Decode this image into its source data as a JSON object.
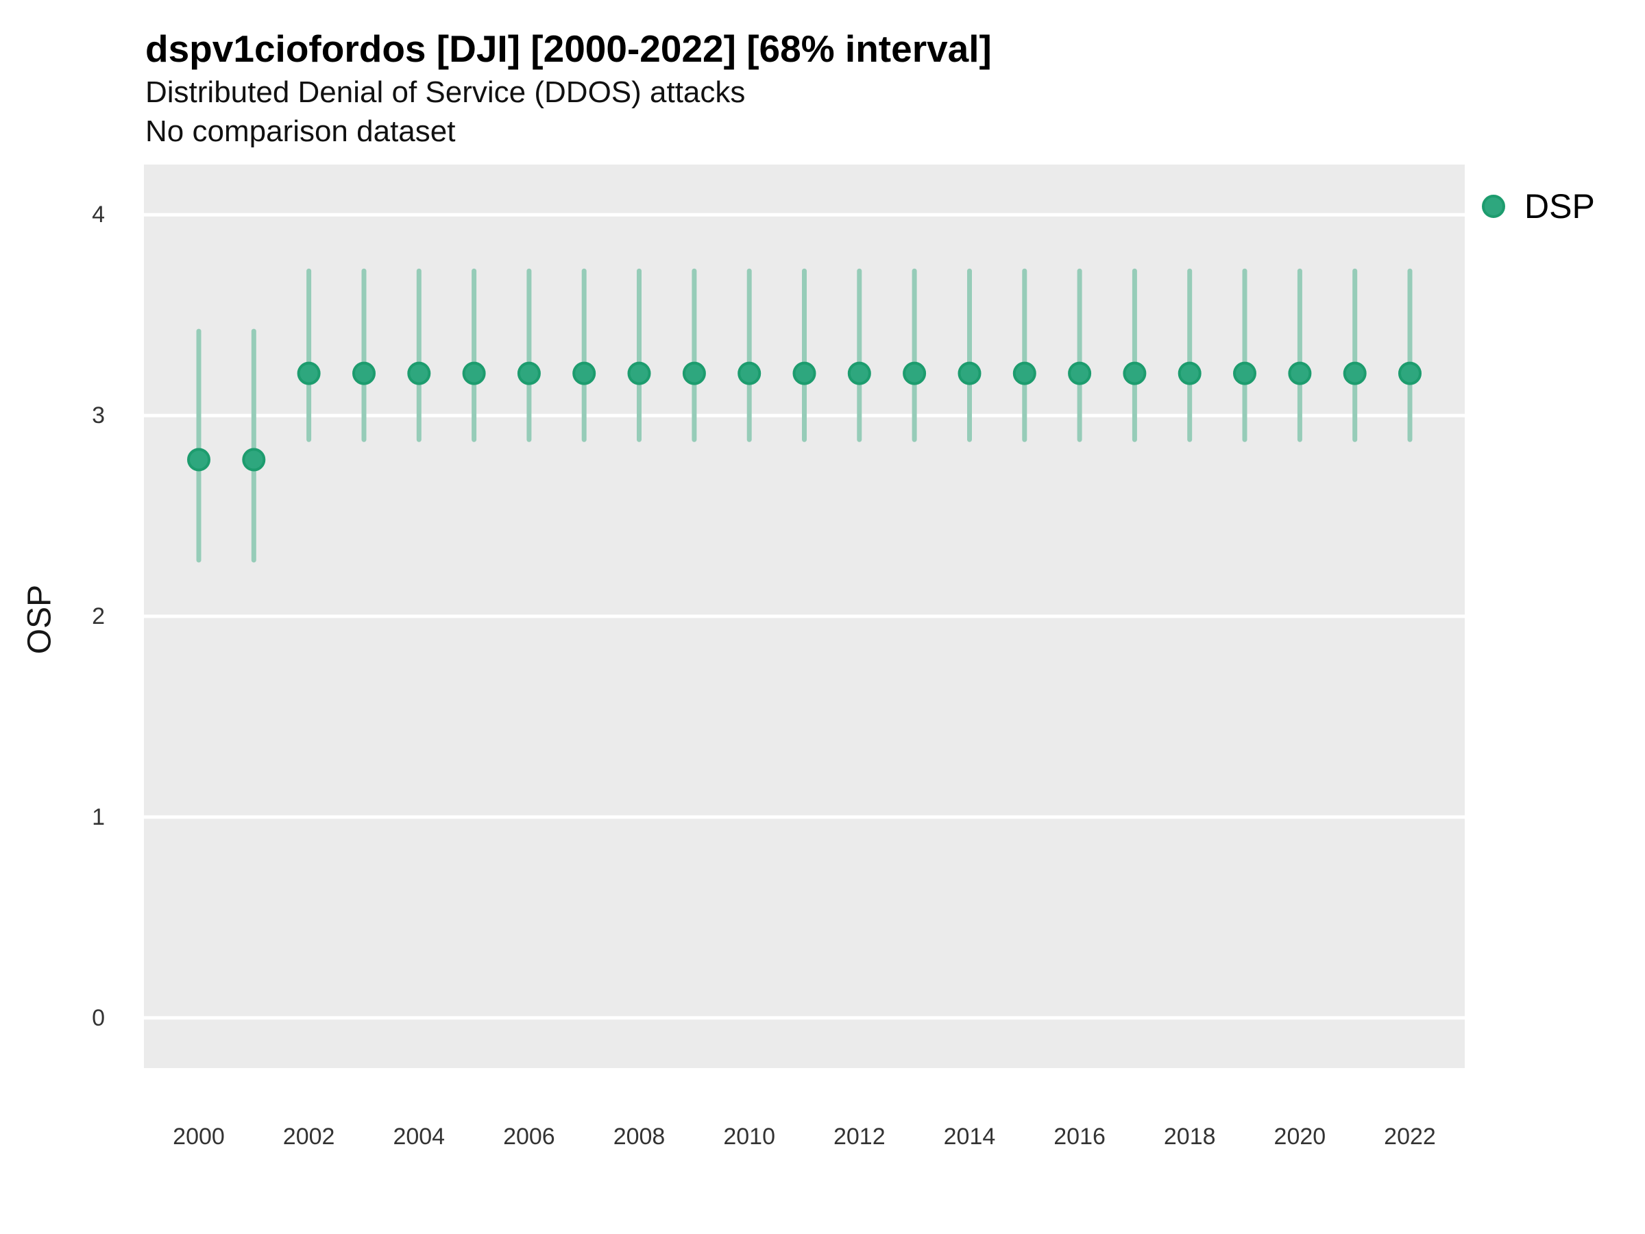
{
  "header": {
    "title": "dspv1ciofordos [DJI] [2000-2022] [68% interval]",
    "subtitle": "Distributed Denial of Service (DDOS) attacks",
    "note": "No comparison dataset"
  },
  "axis": {
    "y_label": "OSP"
  },
  "legend": {
    "items": [
      {
        "label": "DSP",
        "color": "#2ea77e",
        "border": "#1d9c6e"
      }
    ]
  },
  "colors": {
    "panel_bg": "#ebebeb",
    "gridline": "#ffffff",
    "point_fill": "#2ea77e",
    "point_stroke": "#1d9c6e",
    "interval": "#96ccb8",
    "tick_text": "#333333"
  },
  "chart_data": {
    "type": "scatter",
    "subtype": "pointrange (points with 68% error bars)",
    "title": "dspv1ciofordos [DJI] [2000-2022] [68% interval]",
    "subtitle": "Distributed Denial of Service (DDOS) attacks",
    "note": "No comparison dataset",
    "xlabel": "",
    "ylabel": "OSP",
    "interval": "68%",
    "grid": "horizontal major gridlines only, white on gray panel",
    "legend_position": "right-top",
    "ylim": [
      -0.25,
      4.25
    ],
    "yticks": [
      0,
      1,
      2,
      3,
      4
    ],
    "xticks": [
      2000,
      2002,
      2004,
      2006,
      2008,
      2010,
      2012,
      2014,
      2016,
      2018,
      2020,
      2022
    ],
    "x": [
      2000,
      2001,
      2002,
      2003,
      2004,
      2005,
      2006,
      2007,
      2008,
      2009,
      2010,
      2011,
      2012,
      2013,
      2014,
      2015,
      2016,
      2017,
      2018,
      2019,
      2020,
      2021,
      2022
    ],
    "series": [
      {
        "name": "DSP",
        "values": [
          2.78,
          2.78,
          3.21,
          3.21,
          3.21,
          3.21,
          3.21,
          3.21,
          3.21,
          3.21,
          3.21,
          3.21,
          3.21,
          3.21,
          3.21,
          3.21,
          3.21,
          3.21,
          3.21,
          3.21,
          3.21,
          3.21,
          3.21
        ],
        "lower": [
          2.28,
          2.28,
          2.88,
          2.88,
          2.88,
          2.88,
          2.88,
          2.88,
          2.88,
          2.88,
          2.88,
          2.88,
          2.88,
          2.88,
          2.88,
          2.88,
          2.88,
          2.88,
          2.88,
          2.88,
          2.88,
          2.88,
          2.88
        ],
        "upper": [
          3.42,
          3.42,
          3.72,
          3.72,
          3.72,
          3.72,
          3.72,
          3.72,
          3.72,
          3.72,
          3.72,
          3.72,
          3.72,
          3.72,
          3.72,
          3.72,
          3.72,
          3.72,
          3.72,
          3.72,
          3.72,
          3.72,
          3.72
        ]
      }
    ]
  }
}
